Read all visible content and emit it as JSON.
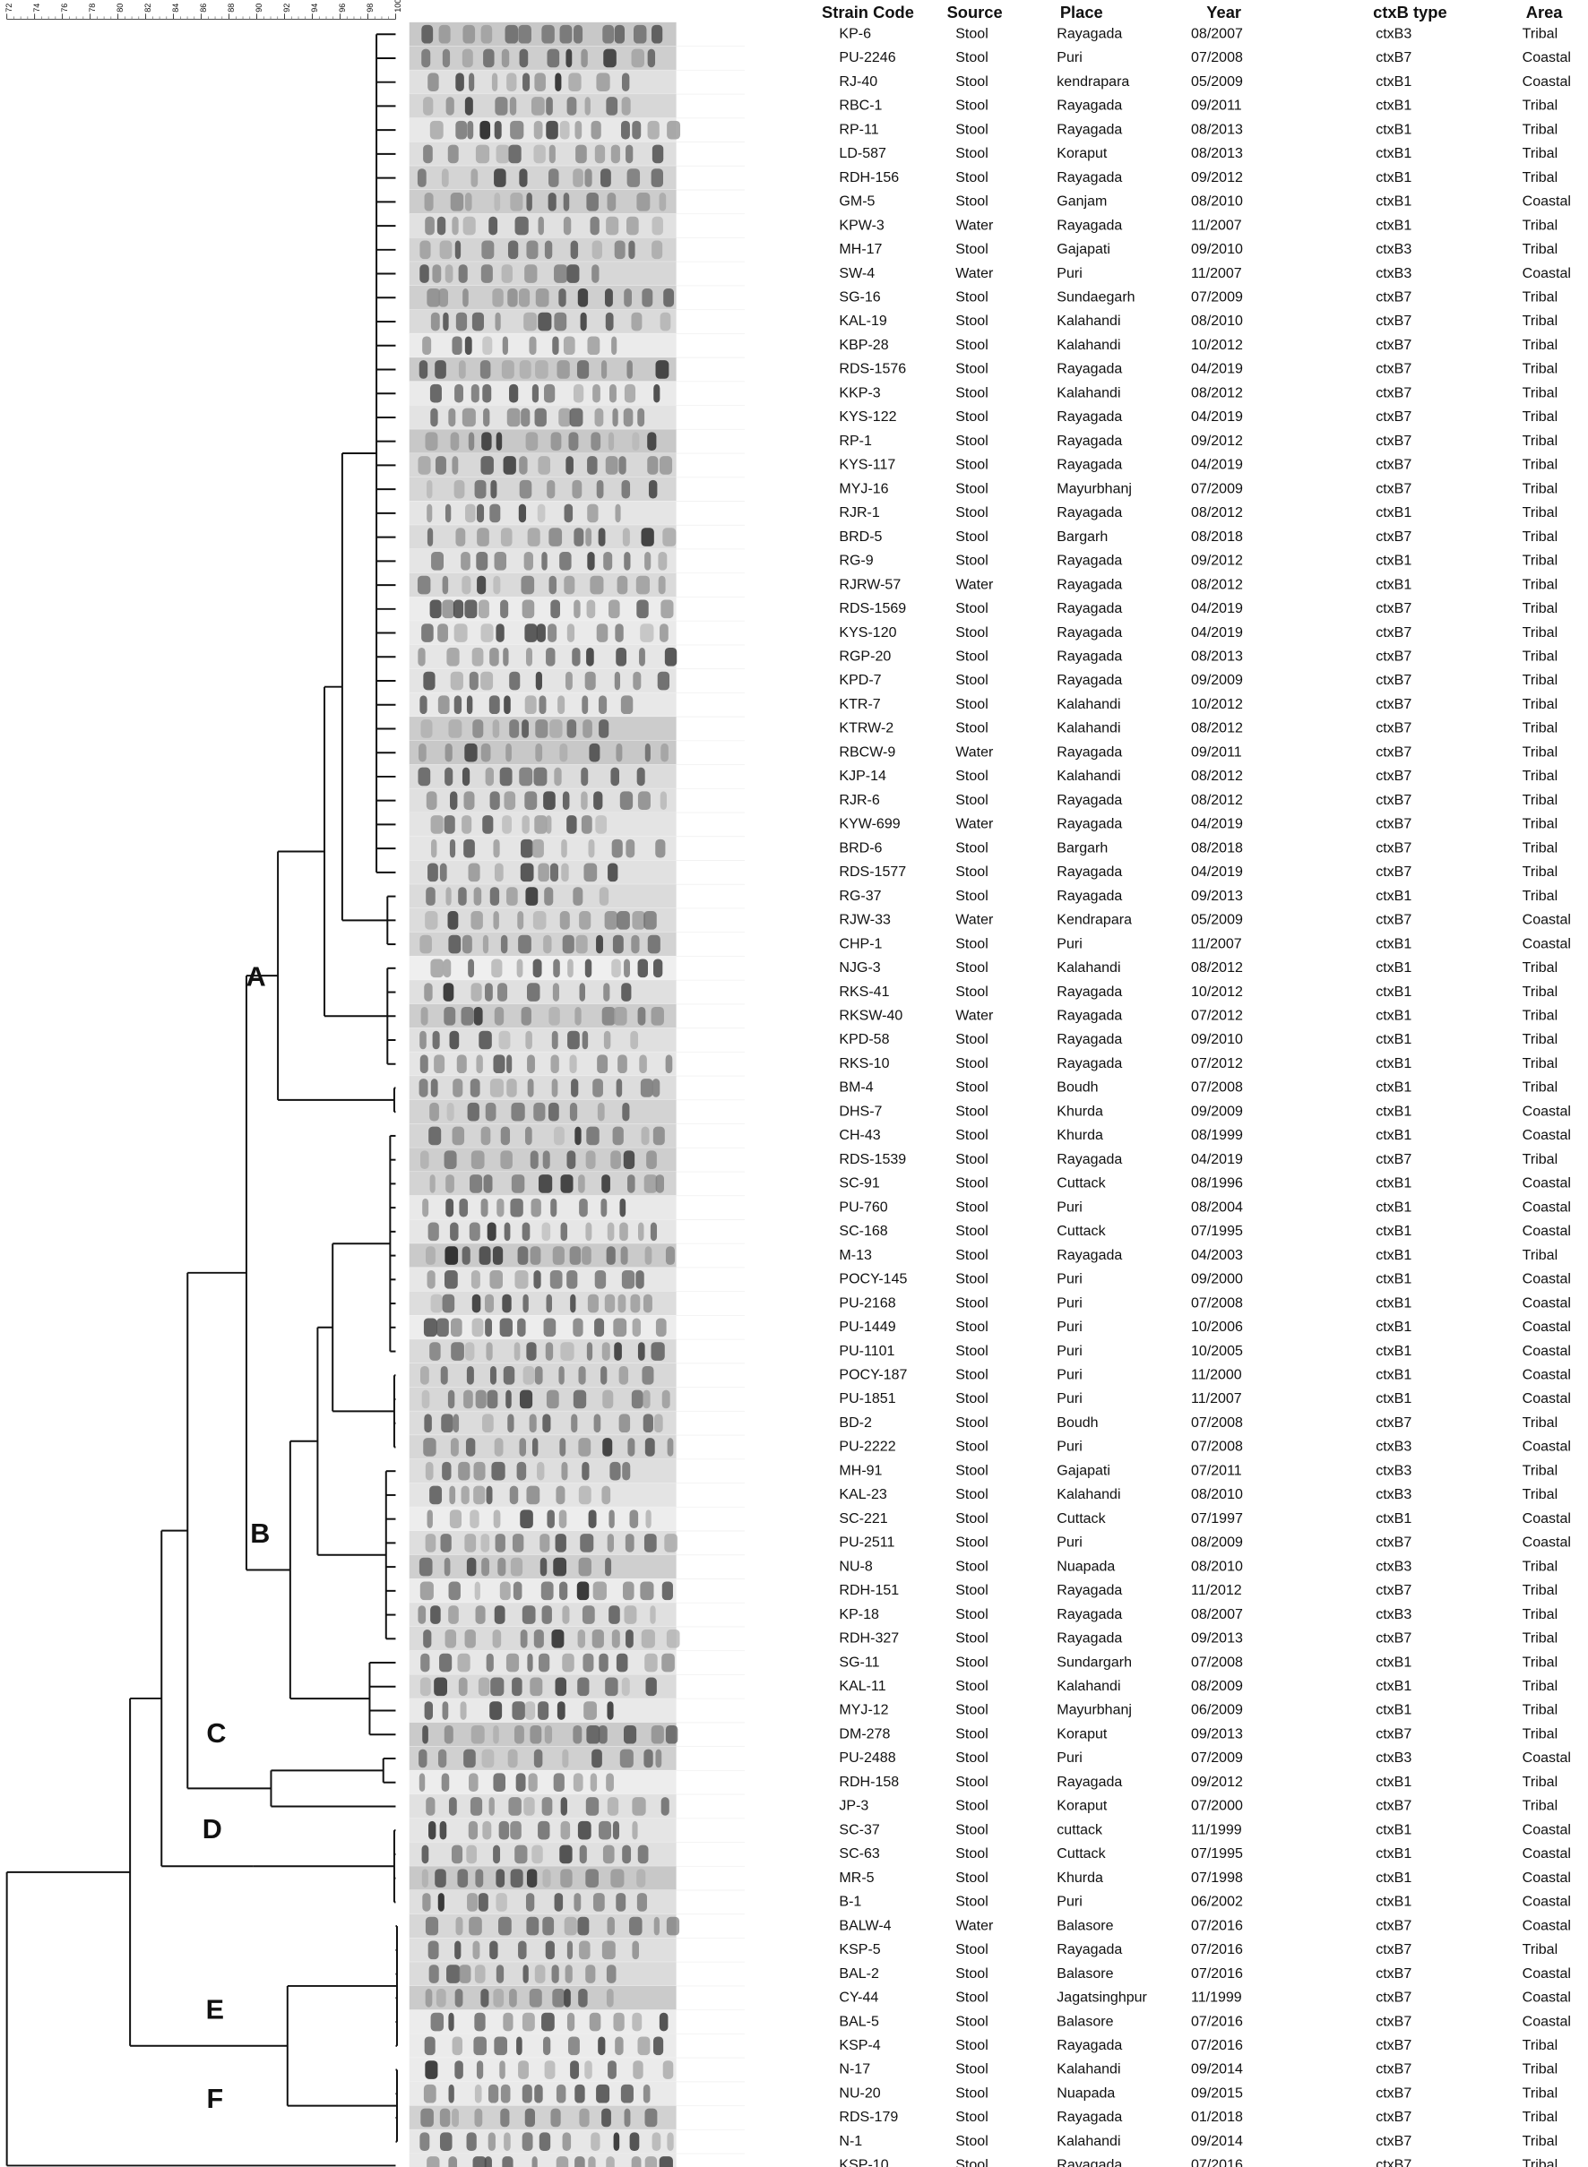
{
  "scale": {
    "range": [
      72,
      100
    ],
    "ticks": [
      72,
      74,
      76,
      78,
      80,
      82,
      84,
      86,
      88,
      90,
      92,
      94,
      96,
      98,
      100
    ]
  },
  "clusters": [
    "A",
    "B",
    "C",
    "D",
    "E",
    "F"
  ],
  "table": {
    "headers": [
      "Strain Code",
      "Source",
      "Place",
      "Year",
      "ctxB type",
      "Area"
    ],
    "rows": [
      [
        "KP-6",
        "Stool",
        "Rayagada",
        "08/2007",
        "ctxB3",
        "Tribal"
      ],
      [
        "PU-2246",
        "Stool",
        "Puri",
        "07/2008",
        "ctxB7",
        "Coastal"
      ],
      [
        "RJ-40",
        "Stool",
        "kendrapara",
        "05/2009",
        "ctxB1",
        "Coastal"
      ],
      [
        "RBC-1",
        "Stool",
        "Rayagada",
        "09/2011",
        "ctxB1",
        "Tribal"
      ],
      [
        "RP-11",
        "Stool",
        "Rayagada",
        "08/2013",
        "ctxB1",
        "Tribal"
      ],
      [
        "LD-587",
        "Stool",
        "Koraput",
        "08/2013",
        "ctxB1",
        "Tribal"
      ],
      [
        "RDH-156",
        "Stool",
        "Rayagada",
        "09/2012",
        "ctxB1",
        "Tribal"
      ],
      [
        "GM-5",
        "Stool",
        "Ganjam",
        "08/2010",
        "ctxB1",
        "Coastal"
      ],
      [
        "KPW-3",
        "Water",
        "Rayagada",
        "11/2007",
        "ctxB1",
        "Tribal"
      ],
      [
        "MH-17",
        "Stool",
        "Gajapati",
        "09/2010",
        "ctxB3",
        "Tribal"
      ],
      [
        "SW-4",
        "Water",
        "Puri",
        "11/2007",
        "ctxB3",
        "Coastal"
      ],
      [
        "SG-16",
        "Stool",
        "Sundaegarh",
        "07/2009",
        "ctxB7",
        "Tribal"
      ],
      [
        "KAL-19",
        "Stool",
        "Kalahandi",
        "08/2010",
        "ctxB7",
        "Tribal"
      ],
      [
        "KBP-28",
        "Stool",
        "Kalahandi",
        "10/2012",
        "ctxB7",
        "Tribal"
      ],
      [
        "RDS-1576",
        "Stool",
        "Rayagada",
        "04/2019",
        "ctxB7",
        "Tribal"
      ],
      [
        "KKP-3",
        "Stool",
        "Kalahandi",
        "08/2012",
        "ctxB7",
        "Tribal"
      ],
      [
        "KYS-122",
        "Stool",
        "Rayagada",
        "04/2019",
        "ctxB7",
        "Tribal"
      ],
      [
        "RP-1",
        "Stool",
        "Rayagada",
        "09/2012",
        "ctxB7",
        "Tribal"
      ],
      [
        "KYS-117",
        "Stool",
        "Rayagada",
        "04/2019",
        "ctxB7",
        "Tribal"
      ],
      [
        "MYJ-16",
        "Stool",
        "Mayurbhanj",
        "07/2009",
        "ctxB7",
        "Tribal"
      ],
      [
        "RJR-1",
        "Stool",
        "Rayagada",
        "08/2012",
        "ctxB1",
        "Tribal"
      ],
      [
        "BRD-5",
        "Stool",
        "Bargarh",
        "08/2018",
        "ctxB7",
        "Tribal"
      ],
      [
        "RG-9",
        "Stool",
        "Rayagada",
        "09/2012",
        "ctxB1",
        "Tribal"
      ],
      [
        "RJRW-57",
        "Water",
        "Rayagada",
        "08/2012",
        "ctxB1",
        "Tribal"
      ],
      [
        "RDS-1569",
        "Stool",
        "Rayagada",
        "04/2019",
        "ctxB7",
        "Tribal"
      ],
      [
        "KYS-120",
        "Stool",
        "Rayagada",
        "04/2019",
        "ctxB7",
        "Tribal"
      ],
      [
        "RGP-20",
        "Stool",
        "Rayagada",
        "08/2013",
        "ctxB7",
        "Tribal"
      ],
      [
        "KPD-7",
        "Stool",
        "Rayagada",
        "09/2009",
        "ctxB7",
        "Tribal"
      ],
      [
        "KTR-7",
        "Stool",
        "Kalahandi",
        "10/2012",
        "ctxB7",
        "Tribal"
      ],
      [
        "KTRW-2",
        "Stool",
        "Kalahandi",
        "08/2012",
        "ctxB7",
        "Tribal"
      ],
      [
        "RBCW-9",
        "Water",
        "Rayagada",
        "09/2011",
        "ctxB7",
        "Tribal"
      ],
      [
        "KJP-14",
        "Stool",
        "Kalahandi",
        "08/2012",
        "ctxB7",
        "Tribal"
      ],
      [
        "RJR-6",
        "Stool",
        "Rayagada",
        "08/2012",
        "ctxB7",
        "Tribal"
      ],
      [
        "KYW-699",
        "Water",
        "Rayagada",
        "04/2019",
        "ctxB7",
        "Tribal"
      ],
      [
        "BRD-6",
        "Stool",
        "Bargarh",
        "08/2018",
        "ctxB7",
        "Tribal"
      ],
      [
        "RDS-1577",
        "Stool",
        "Rayagada",
        "04/2019",
        "ctxB7",
        "Tribal"
      ],
      [
        "RG-37",
        "Stool",
        "Rayagada",
        "09/2013",
        "ctxB1",
        "Tribal"
      ],
      [
        "RJW-33",
        "Water",
        "Kendrapara",
        "05/2009",
        "ctxB7",
        "Coastal"
      ],
      [
        "CHP-1",
        "Stool",
        "Puri",
        "11/2007",
        "ctxB1",
        "Coastal"
      ],
      [
        "NJG-3",
        "Stool",
        "Kalahandi",
        "08/2012",
        "ctxB1",
        "Tribal"
      ],
      [
        "RKS-41",
        "Stool",
        "Rayagada",
        "10/2012",
        "ctxB1",
        "Tribal"
      ],
      [
        "RKSW-40",
        "Water",
        "Rayagada",
        "07/2012",
        "ctxB1",
        "Tribal"
      ],
      [
        "KPD-58",
        "Stool",
        "Rayagada",
        "09/2010",
        "ctxB1",
        "Tribal"
      ],
      [
        "RKS-10",
        "Stool",
        "Rayagada",
        "07/2012",
        "ctxB1",
        "Tribal"
      ],
      [
        "BM-4",
        "Stool",
        "Boudh",
        "07/2008",
        "ctxB1",
        "Tribal"
      ],
      [
        "DHS-7",
        "Stool",
        "Khurda",
        "09/2009",
        "ctxB1",
        "Coastal"
      ],
      [
        "CH-43",
        "Stool",
        "Khurda",
        "08/1999",
        "ctxB1",
        "Coastal"
      ],
      [
        "RDS-1539",
        "Stool",
        "Rayagada",
        "04/2019",
        "ctxB7",
        "Tribal"
      ],
      [
        "SC-91",
        "Stool",
        "Cuttack",
        "08/1996",
        "ctxB1",
        "Coastal"
      ],
      [
        "PU-760",
        "Stool",
        "Puri",
        "08/2004",
        "ctxB1",
        "Coastal"
      ],
      [
        "SC-168",
        "Stool",
        "Cuttack",
        "07/1995",
        "ctxB1",
        "Coastal"
      ],
      [
        "M-13",
        "Stool",
        "Rayagada",
        "04/2003",
        "ctxB1",
        "Tribal"
      ],
      [
        "POCY-145",
        "Stool",
        "Puri",
        "09/2000",
        "ctxB1",
        "Coastal"
      ],
      [
        "PU-2168",
        "Stool",
        "Puri",
        "07/2008",
        "ctxB1",
        "Coastal"
      ],
      [
        "PU-1449",
        "Stool",
        "Puri",
        "10/2006",
        "ctxB1",
        "Coastal"
      ],
      [
        "PU-1101",
        "Stool",
        "Puri",
        "10/2005",
        "ctxB1",
        "Coastal"
      ],
      [
        "POCY-187",
        "Stool",
        "Puri",
        "11/2000",
        "ctxB1",
        "Coastal"
      ],
      [
        "PU-1851",
        "Stool",
        "Puri",
        "11/2007",
        "ctxB1",
        "Coastal"
      ],
      [
        "BD-2",
        "Stool",
        "Boudh",
        "07/2008",
        "ctxB7",
        "Tribal"
      ],
      [
        "PU-2222",
        "Stool",
        "Puri",
        "07/2008",
        "ctxB3",
        "Coastal"
      ],
      [
        "MH-91",
        "Stool",
        "Gajapati",
        "07/2011",
        "ctxB3",
        "Tribal"
      ],
      [
        "KAL-23",
        "Stool",
        "Kalahandi",
        "08/2010",
        "ctxB3",
        "Tribal"
      ],
      [
        "SC-221",
        "Stool",
        "Cuttack",
        "07/1997",
        "ctxB1",
        "Coastal"
      ],
      [
        "PU-2511",
        "Stool",
        "Puri",
        "08/2009",
        "ctxB7",
        "Coastal"
      ],
      [
        "NU-8",
        "Stool",
        "Nuapada",
        "08/2010",
        "ctxB3",
        "Tribal"
      ],
      [
        "RDH-151",
        "Stool",
        "Rayagada",
        "11/2012",
        "ctxB7",
        "Tribal"
      ],
      [
        "KP-18",
        "Stool",
        "Rayagada",
        "08/2007",
        "ctxB3",
        "Tribal"
      ],
      [
        "RDH-327",
        "Stool",
        "Rayagada",
        "09/2013",
        "ctxB7",
        "Tribal"
      ],
      [
        "SG-11",
        "Stool",
        "Sundargarh",
        "07/2008",
        "ctxB1",
        "Tribal"
      ],
      [
        "KAL-11",
        "Stool",
        "Kalahandi",
        "08/2009",
        "ctxB1",
        "Tribal"
      ],
      [
        "MYJ-12",
        "Stool",
        "Mayurbhanj",
        "06/2009",
        "ctxB1",
        "Tribal"
      ],
      [
        "DM-278",
        "Stool",
        "Koraput",
        "09/2013",
        "ctxB7",
        "Tribal"
      ],
      [
        "PU-2488",
        "Stool",
        "Puri",
        "07/2009",
        "ctxB3",
        "Coastal"
      ],
      [
        "RDH-158",
        "Stool",
        "Rayagada",
        "09/2012",
        "ctxB1",
        "Tribal"
      ],
      [
        "JP-3",
        "Stool",
        "Koraput",
        "07/2000",
        "ctxB7",
        "Tribal"
      ],
      [
        "SC-37",
        "Stool",
        "cuttack",
        "11/1999",
        "ctxB1",
        "Coastal"
      ],
      [
        "SC-63",
        "Stool",
        "Cuttack",
        "07/1995",
        "ctxB1",
        "Coastal"
      ],
      [
        "MR-5",
        "Stool",
        "Khurda",
        "07/1998",
        "ctxB1",
        "Coastal"
      ],
      [
        "B-1",
        "Stool",
        "Puri",
        "06/2002",
        "ctxB1",
        "Coastal"
      ],
      [
        "BALW-4",
        "Water",
        "Balasore",
        "07/2016",
        "ctxB7",
        "Coastal"
      ],
      [
        "KSP-5",
        "Stool",
        "Rayagada",
        "07/2016",
        "ctxB7",
        "Tribal"
      ],
      [
        "BAL-2",
        "Stool",
        "Balasore",
        "07/2016",
        "ctxB7",
        "Coastal"
      ],
      [
        "CY-44",
        "Stool",
        "Jagatsinghpur",
        "11/1999",
        "ctxB7",
        "Coastal"
      ],
      [
        "BAL-5",
        "Stool",
        "Balasore",
        "07/2016",
        "ctxB7",
        "Coastal"
      ],
      [
        "KSP-4",
        "Stool",
        "Rayagada",
        "07/2016",
        "ctxB7",
        "Tribal"
      ],
      [
        "N-17",
        "Stool",
        "Kalahandi",
        "09/2014",
        "ctxB7",
        "Tribal"
      ],
      [
        "NU-20",
        "Stool",
        "Nuapada",
        "09/2015",
        "ctxB7",
        "Tribal"
      ],
      [
        "RDS-179",
        "Stool",
        "Rayagada",
        "01/2018",
        "ctxB7",
        "Tribal"
      ],
      [
        "N-1",
        "Stool",
        "Kalahandi",
        "09/2014",
        "ctxB7",
        "Tribal"
      ],
      [
        "KSP-10",
        "Stool",
        "Rayagada",
        "07/2016",
        "ctxB7",
        "Tribal"
      ]
    ]
  }
}
